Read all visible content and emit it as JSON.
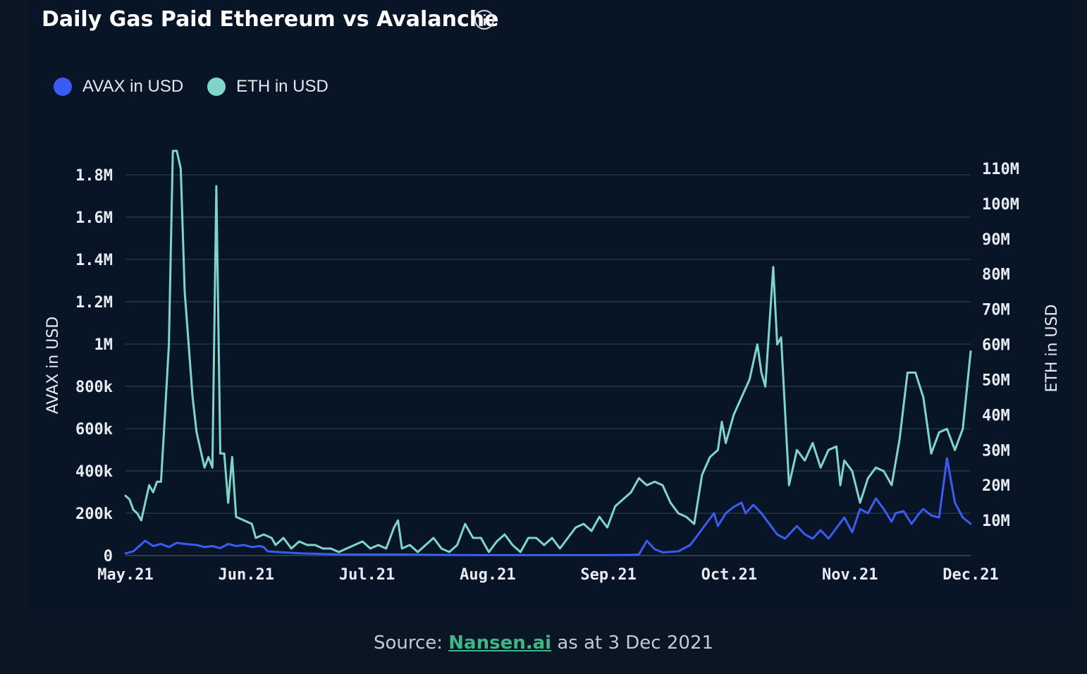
{
  "header": {
    "title": "Daily Gas Paid Ethereum vs Avalanche"
  },
  "legend": [
    {
      "label": "AVAX in USD",
      "color": "#3b5bf5"
    },
    {
      "label": "ETH in USD",
      "color": "#7fd6c8"
    }
  ],
  "footer": {
    "prefix": "Source:",
    "link_text": "Nansen.ai",
    "suffix": "as at 3 Dec 2021"
  },
  "chart_data": {
    "type": "line",
    "title": "Daily Gas Paid Ethereum vs Avalanche",
    "ylabel": "AVAX in USD",
    "y2label": "ETH in USD",
    "ylim": [
      0,
      1800000
    ],
    "y2lim": [
      0,
      110000000
    ],
    "yticks": [
      "0",
      "200k",
      "400k",
      "600k",
      "800k",
      "1M",
      "1.2M",
      "1.4M",
      "1.6M",
      "1.8M"
    ],
    "y2ticks": [
      "10M",
      "20M",
      "30M",
      "40M",
      "50M",
      "60M",
      "70M",
      "80M",
      "90M",
      "100M",
      "110M"
    ],
    "xticks": [
      "May.21",
      "Jun.21",
      "Jul.21",
      "Aug.21",
      "Sep.21",
      "Oct.21",
      "Nov.21",
      "Dec.21"
    ],
    "xrange_days": [
      0,
      214
    ],
    "grid": true,
    "legend_position": "top-left",
    "series": [
      {
        "name": "AVAX in USD",
        "axis": "left",
        "color": "#3b5bf5",
        "points": [
          [
            0,
            10000
          ],
          [
            2,
            20000
          ],
          [
            5,
            70000
          ],
          [
            7,
            45000
          ],
          [
            9,
            55000
          ],
          [
            11,
            40000
          ],
          [
            13,
            60000
          ],
          [
            15,
            55000
          ],
          [
            18,
            50000
          ],
          [
            20,
            40000
          ],
          [
            22,
            45000
          ],
          [
            24,
            35000
          ],
          [
            26,
            55000
          ],
          [
            28,
            45000
          ],
          [
            30,
            50000
          ],
          [
            32,
            40000
          ],
          [
            34,
            45000
          ],
          [
            35,
            40000
          ],
          [
            36,
            20000
          ],
          [
            40,
            15000
          ],
          [
            45,
            10000
          ],
          [
            50,
            8000
          ],
          [
            55,
            5000
          ],
          [
            60,
            5000
          ],
          [
            70,
            5000
          ],
          [
            80,
            3000
          ],
          [
            90,
            2000
          ],
          [
            100,
            2000
          ],
          [
            110,
            2000
          ],
          [
            120,
            2000
          ],
          [
            128,
            3000
          ],
          [
            130,
            5000
          ],
          [
            132,
            70000
          ],
          [
            134,
            30000
          ],
          [
            136,
            15000
          ],
          [
            140,
            20000
          ],
          [
            143,
            50000
          ],
          [
            145,
            100000
          ],
          [
            147,
            150000
          ],
          [
            149,
            200000
          ],
          [
            150,
            140000
          ],
          [
            152,
            200000
          ],
          [
            154,
            230000
          ],
          [
            156,
            250000
          ],
          [
            157,
            200000
          ],
          [
            159,
            240000
          ],
          [
            161,
            200000
          ],
          [
            163,
            150000
          ],
          [
            165,
            100000
          ],
          [
            167,
            80000
          ],
          [
            170,
            140000
          ],
          [
            172,
            100000
          ],
          [
            174,
            80000
          ],
          [
            176,
            120000
          ],
          [
            178,
            80000
          ],
          [
            180,
            130000
          ],
          [
            182,
            180000
          ],
          [
            184,
            110000
          ],
          [
            186,
            220000
          ],
          [
            188,
            200000
          ],
          [
            190,
            270000
          ],
          [
            192,
            220000
          ],
          [
            194,
            160000
          ],
          [
            195,
            200000
          ],
          [
            197,
            210000
          ],
          [
            199,
            150000
          ],
          [
            201,
            200000
          ],
          [
            202,
            220000
          ],
          [
            204,
            190000
          ],
          [
            206,
            180000
          ],
          [
            208,
            460000
          ],
          [
            210,
            250000
          ],
          [
            212,
            180000
          ],
          [
            214,
            150000
          ]
        ]
      },
      {
        "name": "ETH in USD",
        "axis": "right",
        "color": "#7fd6c8",
        "points": [
          [
            0,
            17000000
          ],
          [
            1,
            16000000
          ],
          [
            2,
            13000000
          ],
          [
            3,
            12000000
          ],
          [
            4,
            10000000
          ],
          [
            5,
            15000000
          ],
          [
            6,
            20000000
          ],
          [
            7,
            18000000
          ],
          [
            8,
            21000000
          ],
          [
            9,
            21000000
          ],
          [
            10,
            40000000
          ],
          [
            11,
            60000000
          ],
          [
            12,
            115000000
          ],
          [
            13,
            115000000
          ],
          [
            14,
            110000000
          ],
          [
            15,
            75000000
          ],
          [
            16,
            60000000
          ],
          [
            17,
            45000000
          ],
          [
            18,
            35000000
          ],
          [
            19,
            30000000
          ],
          [
            20,
            25000000
          ],
          [
            21,
            28000000
          ],
          [
            22,
            25000000
          ],
          [
            23,
            105000000
          ],
          [
            24,
            29000000
          ],
          [
            25,
            29000000
          ],
          [
            26,
            15000000
          ],
          [
            27,
            28000000
          ],
          [
            28,
            11000000
          ],
          [
            30,
            10000000
          ],
          [
            32,
            9000000
          ],
          [
            33,
            5000000
          ],
          [
            35,
            6000000
          ],
          [
            37,
            5000000
          ],
          [
            38,
            3000000
          ],
          [
            40,
            5000000
          ],
          [
            42,
            2000000
          ],
          [
            44,
            4000000
          ],
          [
            46,
            3000000
          ],
          [
            48,
            3000000
          ],
          [
            50,
            2000000
          ],
          [
            52,
            2000000
          ],
          [
            54,
            1000000
          ],
          [
            56,
            2000000
          ],
          [
            58,
            3000000
          ],
          [
            60,
            4000000
          ],
          [
            62,
            2000000
          ],
          [
            64,
            3000000
          ],
          [
            66,
            2000000
          ],
          [
            68,
            8000000
          ],
          [
            69,
            10000000
          ],
          [
            70,
            2000000
          ],
          [
            72,
            3000000
          ],
          [
            74,
            1000000
          ],
          [
            76,
            3000000
          ],
          [
            78,
            5000000
          ],
          [
            80,
            2000000
          ],
          [
            82,
            1000000
          ],
          [
            84,
            3000000
          ],
          [
            86,
            9000000
          ],
          [
            88,
            5000000
          ],
          [
            90,
            5000000
          ],
          [
            92,
            1000000
          ],
          [
            94,
            4000000
          ],
          [
            96,
            6000000
          ],
          [
            98,
            3000000
          ],
          [
            100,
            1000000
          ],
          [
            102,
            5000000
          ],
          [
            104,
            5000000
          ],
          [
            106,
            3000000
          ],
          [
            108,
            5000000
          ],
          [
            110,
            2000000
          ],
          [
            112,
            5000000
          ],
          [
            114,
            8000000
          ],
          [
            116,
            9000000
          ],
          [
            118,
            7000000
          ],
          [
            120,
            11000000
          ],
          [
            122,
            8000000
          ],
          [
            124,
            14000000
          ],
          [
            126,
            16000000
          ],
          [
            128,
            18000000
          ],
          [
            130,
            22000000
          ],
          [
            132,
            20000000
          ],
          [
            134,
            21000000
          ],
          [
            136,
            20000000
          ],
          [
            138,
            15000000
          ],
          [
            140,
            12000000
          ],
          [
            142,
            11000000
          ],
          [
            144,
            9000000
          ],
          [
            146,
            23000000
          ],
          [
            148,
            28000000
          ],
          [
            150,
            30000000
          ],
          [
            151,
            38000000
          ],
          [
            152,
            32000000
          ],
          [
            154,
            40000000
          ],
          [
            156,
            45000000
          ],
          [
            158,
            50000000
          ],
          [
            160,
            60000000
          ],
          [
            161,
            52000000
          ],
          [
            162,
            48000000
          ],
          [
            164,
            82000000
          ],
          [
            165,
            60000000
          ],
          [
            166,
            62000000
          ],
          [
            168,
            20000000
          ],
          [
            170,
            30000000
          ],
          [
            172,
            27000000
          ],
          [
            174,
            32000000
          ],
          [
            176,
            25000000
          ],
          [
            178,
            30000000
          ],
          [
            180,
            31000000
          ],
          [
            181,
            20000000
          ],
          [
            182,
            27000000
          ],
          [
            184,
            24000000
          ],
          [
            186,
            15000000
          ],
          [
            188,
            22000000
          ],
          [
            190,
            25000000
          ],
          [
            192,
            24000000
          ],
          [
            194,
            20000000
          ],
          [
            196,
            33000000
          ],
          [
            198,
            52000000
          ],
          [
            200,
            52000000
          ],
          [
            202,
            45000000
          ],
          [
            204,
            29000000
          ],
          [
            206,
            35000000
          ],
          [
            208,
            36000000
          ],
          [
            210,
            30000000
          ],
          [
            212,
            36000000
          ],
          [
            214,
            58000000
          ]
        ]
      }
    ]
  }
}
